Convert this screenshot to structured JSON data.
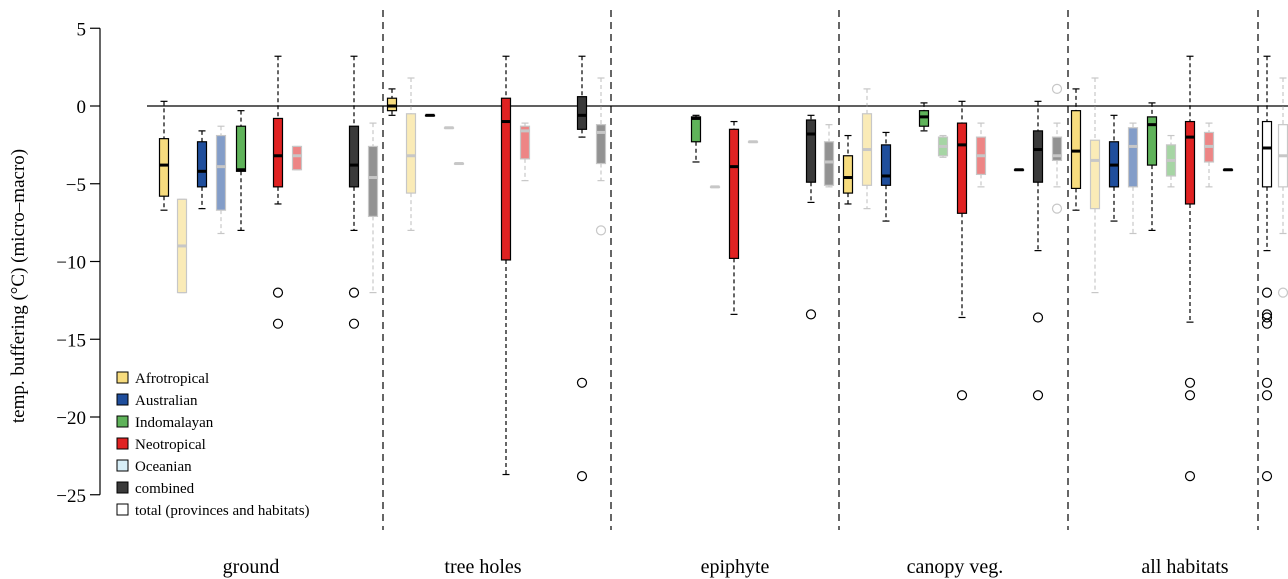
{
  "chart_data": {
    "type": "boxplot",
    "ylabel": "temp. buffering (°C) (micro–macro)",
    "xlabel": "",
    "ylim": [
      -27,
      5
    ],
    "yticks": [
      5,
      0,
      -5,
      -10,
      -15,
      -20,
      -25
    ],
    "ytick_labels": [
      "5",
      "0",
      "−10",
      "−15",
      "−20",
      "−25"
    ],
    "ytick_labels_full": [
      "5",
      "0",
      "−5",
      "−10",
      "−15",
      "−20",
      "−25"
    ],
    "reference_line": 0,
    "groups": [
      "ground",
      "tree holes",
      "epiphyte",
      "canopy veg.",
      "all habitats"
    ],
    "legend": {
      "position": "bottom-left",
      "entries": [
        {
          "name": "Afrotropical",
          "color": "#f7dc7e"
        },
        {
          "name": "Australian",
          "color": "#1f4e9c"
        },
        {
          "name": "Indomalayan",
          "color": "#5fb35a"
        },
        {
          "name": "Neotropical",
          "color": "#e02222"
        },
        {
          "name": "Oceanian",
          "color": "#d7eef7"
        },
        {
          "name": "combined",
          "color": "#3a3a3a"
        },
        {
          "name": "total (provinces and habitats)",
          "color": "#ffffff"
        }
      ]
    },
    "boxes": [
      {
        "group": "ground",
        "series": "Afrotropical",
        "faded": false,
        "min": -6.7,
        "q1": -5.8,
        "median": -3.8,
        "q3": -2.1,
        "max": 0.3,
        "outliers": []
      },
      {
        "group": "ground",
        "series": "Afrotropical",
        "faded": true,
        "min": -12,
        "q1": -12,
        "median": -9,
        "q3": -6,
        "max": -6,
        "outliers": []
      },
      {
        "group": "ground",
        "series": "Australian",
        "faded": false,
        "min": -6.6,
        "q1": -5.2,
        "median": -4.2,
        "q3": -2.3,
        "max": -1.6,
        "outliers": []
      },
      {
        "group": "ground",
        "series": "Australian",
        "faded": true,
        "min": -8.2,
        "q1": -6.7,
        "median": -3.9,
        "q3": -1.9,
        "max": -1.3,
        "outliers": []
      },
      {
        "group": "ground",
        "series": "Indomalayan",
        "faded": false,
        "min": -8.0,
        "q1": -4.2,
        "median": -4.1,
        "q3": -1.3,
        "max": -0.3,
        "outliers": []
      },
      {
        "group": "ground",
        "series": "Neotropical",
        "faded": false,
        "min": -6.3,
        "q1": -5.2,
        "median": -3.2,
        "q3": -0.8,
        "max": 3.2,
        "outliers": [
          -12,
          -14
        ]
      },
      {
        "group": "ground",
        "series": "Neotropical",
        "faded": true,
        "min": -4.1,
        "q1": -4.1,
        "median": -3.2,
        "q3": -2.6,
        "max": -2.6,
        "outliers": []
      },
      {
        "group": "ground",
        "series": "combined",
        "faded": false,
        "min": -8.0,
        "q1": -5.2,
        "median": -3.8,
        "q3": -1.3,
        "max": 3.2,
        "outliers": [
          -12,
          -14
        ]
      },
      {
        "group": "ground",
        "series": "combined",
        "faded": true,
        "min": -12,
        "q1": -7.1,
        "median": -4.6,
        "q3": -2.6,
        "max": -1.1,
        "outliers": []
      },
      {
        "group": "tree holes",
        "series": "Afrotropical",
        "faded": false,
        "min": -0.6,
        "q1": -0.3,
        "median": 0.0,
        "q3": 0.5,
        "max": 1.1,
        "outliers": []
      },
      {
        "group": "tree holes",
        "series": "Afrotropical",
        "faded": true,
        "min": -8.0,
        "q1": -5.6,
        "median": -3.2,
        "q3": -0.5,
        "max": 1.8,
        "outliers": []
      },
      {
        "group": "tree holes",
        "series": "Australian",
        "faded": false,
        "min": -0.6,
        "q1": -0.6,
        "median": -0.6,
        "q3": -0.6,
        "max": -0.6,
        "outliers": []
      },
      {
        "group": "tree holes",
        "series": "Australian",
        "faded": true,
        "min": -1.4,
        "q1": -1.4,
        "median": -1.4,
        "q3": -1.4,
        "max": -1.4,
        "outliers": []
      },
      {
        "group": "tree holes",
        "series": "Indomalayan",
        "faded": true,
        "min": -3.7,
        "q1": -3.7,
        "median": -3.7,
        "q3": -3.7,
        "max": -3.7,
        "outliers": []
      },
      {
        "group": "tree holes",
        "series": "Neotropical",
        "faded": false,
        "min": -23.7,
        "q1": -9.9,
        "median": -1.0,
        "q3": 0.5,
        "max": 3.2,
        "outliers": []
      },
      {
        "group": "tree holes",
        "series": "Neotropical",
        "faded": true,
        "min": -4.8,
        "q1": -3.4,
        "median": -1.6,
        "q3": -1.3,
        "max": -1.1,
        "outliers": []
      },
      {
        "group": "tree holes",
        "series": "combined",
        "faded": false,
        "min": -2.0,
        "q1": -1.5,
        "median": -0.6,
        "q3": 0.6,
        "max": 3.2,
        "outliers": [
          -17.8,
          -23.8
        ]
      },
      {
        "group": "tree holes",
        "series": "combined",
        "faded": true,
        "min": -4.8,
        "q1": -3.7,
        "median": -1.7,
        "q3": -1.2,
        "max": 1.8,
        "outliers": [
          -8.0
        ]
      },
      {
        "group": "epiphyte",
        "series": "Indomalayan",
        "faded": false,
        "min": -3.6,
        "q1": -2.3,
        "median": -0.8,
        "q3": -0.7,
        "max": -0.6,
        "outliers": []
      },
      {
        "group": "epiphyte",
        "series": "Indomalayan",
        "faded": true,
        "min": -5.2,
        "q1": -5.2,
        "median": -5.2,
        "q3": -5.2,
        "max": -5.2,
        "outliers": []
      },
      {
        "group": "epiphyte",
        "series": "Neotropical",
        "faded": false,
        "min": -13.4,
        "q1": -9.8,
        "median": -3.9,
        "q3": -1.5,
        "max": -1.0,
        "outliers": []
      },
      {
        "group": "epiphyte",
        "series": "Neotropical",
        "faded": true,
        "min": -2.3,
        "q1": -2.3,
        "median": -2.3,
        "q3": -2.3,
        "max": -2.3,
        "outliers": []
      },
      {
        "group": "epiphyte",
        "series": "combined",
        "faded": false,
        "min": -6.2,
        "q1": -4.9,
        "median": -1.8,
        "q3": -0.9,
        "max": -0.6,
        "outliers": [
          -13.4
        ]
      },
      {
        "group": "epiphyte",
        "series": "combined",
        "faded": true,
        "min": -5.2,
        "q1": -5.1,
        "median": -3.6,
        "q3": -2.3,
        "max": -1.2,
        "outliers": []
      },
      {
        "group": "canopy veg.",
        "series": "Afrotropical",
        "faded": false,
        "min": -6.3,
        "q1": -5.6,
        "median": -4.6,
        "q3": -3.2,
        "max": -1.9,
        "outliers": []
      },
      {
        "group": "canopy veg.",
        "series": "Afrotropical",
        "faded": true,
        "min": -6.6,
        "q1": -5.1,
        "median": -2.8,
        "q3": -0.5,
        "max": 1.1,
        "outliers": []
      },
      {
        "group": "canopy veg.",
        "series": "Australian",
        "faded": false,
        "min": -7.4,
        "q1": -5.1,
        "median": -4.5,
        "q3": -2.5,
        "max": -1.7,
        "outliers": []
      },
      {
        "group": "canopy veg.",
        "series": "Indomalayan",
        "faded": false,
        "min": -1.6,
        "q1": -1.3,
        "median": -0.7,
        "q3": -0.3,
        "max": 0.2,
        "outliers": []
      },
      {
        "group": "canopy veg.",
        "series": "Indomalayan",
        "faded": true,
        "min": -3.3,
        "q1": -3.2,
        "median": -2.6,
        "q3": -2.0,
        "max": -1.9,
        "outliers": []
      },
      {
        "group": "canopy veg.",
        "series": "Neotropical",
        "faded": false,
        "min": -13.6,
        "q1": -6.9,
        "median": -2.5,
        "q3": -1.1,
        "max": 0.3,
        "outliers": [
          -18.6
        ]
      },
      {
        "group": "canopy veg.",
        "series": "Neotropical",
        "faded": true,
        "min": -5.2,
        "q1": -4.4,
        "median": -3.2,
        "q3": -2.0,
        "max": -1.1,
        "outliers": []
      },
      {
        "group": "canopy veg.",
        "series": "Neotropical",
        "faded": false,
        "min": -4.1,
        "q1": -4.1,
        "median": -4.1,
        "q3": -4.1,
        "max": -4.1,
        "outliers": []
      },
      {
        "group": "canopy veg.",
        "series": "combined",
        "faded": false,
        "min": -9.3,
        "q1": -4.9,
        "median": -2.8,
        "q3": -1.6,
        "max": 0.3,
        "outliers": [
          -13.6,
          -18.6
        ]
      },
      {
        "group": "canopy veg.",
        "series": "combined",
        "faded": true,
        "min": -5.2,
        "q1": -3.5,
        "median": -3.2,
        "q3": -2.0,
        "max": -1.1,
        "outliers": [
          1.1,
          -6.6
        ]
      },
      {
        "group": "all habitats",
        "series": "Afrotropical",
        "faded": false,
        "min": -6.7,
        "q1": -5.3,
        "median": -2.9,
        "q3": -0.3,
        "max": 1.1,
        "outliers": []
      },
      {
        "group": "all habitats",
        "series": "Afrotropical",
        "faded": true,
        "min": -12,
        "q1": -6.6,
        "median": -3.5,
        "q3": -2.2,
        "max": 1.8,
        "outliers": []
      },
      {
        "group": "all habitats",
        "series": "Australian",
        "faded": false,
        "min": -7.4,
        "q1": -5.2,
        "median": -3.8,
        "q3": -2.3,
        "max": -0.6,
        "outliers": []
      },
      {
        "group": "all habitats",
        "series": "Australian",
        "faded": true,
        "min": -8.2,
        "q1": -5.2,
        "median": -2.6,
        "q3": -1.4,
        "max": -1.1,
        "outliers": []
      },
      {
        "group": "all habitats",
        "series": "Indomalayan",
        "faded": false,
        "min": -8.0,
        "q1": -3.8,
        "median": -1.2,
        "q3": -0.7,
        "max": 0.2,
        "outliers": []
      },
      {
        "group": "all habitats",
        "series": "Indomalayan",
        "faded": true,
        "min": -5.2,
        "q1": -4.5,
        "median": -3.5,
        "q3": -2.5,
        "max": -1.9,
        "outliers": []
      },
      {
        "group": "all habitats",
        "series": "Neotropical",
        "faded": false,
        "min": -13.9,
        "q1": -6.3,
        "median": -2.0,
        "q3": -1.0,
        "max": 3.2,
        "outliers": [
          -17.8,
          -18.6,
          -23.8
        ]
      },
      {
        "group": "all habitats",
        "series": "Neotropical",
        "faded": true,
        "min": -5.2,
        "q1": -3.6,
        "median": -2.6,
        "q3": -1.7,
        "max": -1.1,
        "outliers": []
      },
      {
        "group": "all habitats",
        "series": "Neotropical",
        "faded": false,
        "min": -4.1,
        "q1": -4.1,
        "median": -4.1,
        "q3": -4.1,
        "max": -4.1,
        "outliers": []
      },
      {
        "group": "all habitats",
        "series": "total (provinces and habitats)",
        "faded": false,
        "min": -9.3,
        "q1": -5.2,
        "median": -2.7,
        "q3": -1.0,
        "max": 3.2,
        "outliers": [
          -12,
          -13.4,
          -13.6,
          -14,
          -17.8,
          -18.6,
          -23.8
        ]
      },
      {
        "group": "all habitats",
        "series": "total (provinces and habitats)",
        "faded": true,
        "min": -8.2,
        "q1": -5.2,
        "median": -3.2,
        "q3": -1.2,
        "max": 1.8,
        "outliers": [
          -12
        ]
      }
    ]
  }
}
